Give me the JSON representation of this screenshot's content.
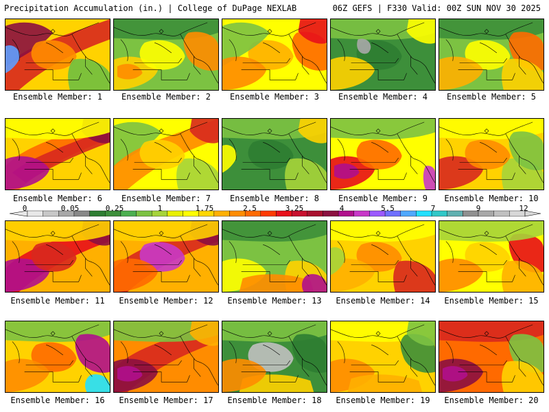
{
  "header": {
    "left": "Precipitation Accumulation (in.) | College of DuPage NEXLAB",
    "right": "06Z GEFS | F330 Valid: 00Z SUN NOV 30 2025"
  },
  "colorbar": {
    "ticks": [
      "0",
      "0.05",
      "0.25",
      "1",
      "1.75",
      "2.5",
      "3.25",
      "4",
      "5.5",
      "7",
      "9",
      "12"
    ],
    "colors": [
      "#e8e8e8",
      "#c8c8c8",
      "#a8a8a8",
      "#888888",
      "#2e7d32",
      "#3d8f3a",
      "#4caf50",
      "#7cc242",
      "#a6d43a",
      "#e8f000",
      "#ffff00",
      "#ffd700",
      "#ffb000",
      "#ff8c00",
      "#ff6a00",
      "#ff3a00",
      "#e8101a",
      "#c8102e",
      "#a8102e",
      "#8b1040",
      "#b0108c",
      "#c838c8",
      "#9b59ff",
      "#6f6fff",
      "#4fa8ff",
      "#22e0ff",
      "#30c8c8",
      "#60b0b0",
      "#909090",
      "#a8a8a8",
      "#c0c0c0",
      "#d8d8d8"
    ]
  },
  "members": [
    {
      "label": "Ensemble Member: 1",
      "base": "#ffd200",
      "blobs": [
        {
          "c": "#d8281e",
          "s": "diag"
        },
        {
          "c": "#8b1040",
          "s": "nw"
        },
        {
          "c": "#5f9fff",
          "s": "nwcorner"
        },
        {
          "c": "#ff8c00",
          "s": "mid"
        },
        {
          "c": "#6fbf40",
          "s": "se"
        }
      ]
    },
    {
      "label": "Ensemble Member: 2",
      "base": "#7cc242",
      "blobs": [
        {
          "c": "#3d8f3a",
          "s": "north"
        },
        {
          "c": "#ffd200",
          "s": "sw"
        },
        {
          "c": "#ff8c00",
          "s": "sw2"
        },
        {
          "c": "#ffff00",
          "s": "mid"
        },
        {
          "c": "#ff8c00",
          "s": "east"
        }
      ]
    },
    {
      "label": "Ensemble Member: 3",
      "base": "#ffff00",
      "blobs": [
        {
          "c": "#ffb000",
          "s": "mid"
        },
        {
          "c": "#ff6a00",
          "s": "east"
        },
        {
          "c": "#e8101a",
          "s": "ne"
        },
        {
          "c": "#7cc242",
          "s": "nw"
        },
        {
          "c": "#ff8c00",
          "s": "sw"
        }
      ]
    },
    {
      "label": "Ensemble Member: 4",
      "base": "#3d8f3a",
      "blobs": [
        {
          "c": "#2e7d32",
          "s": "mid"
        },
        {
          "c": "#7cc242",
          "s": "north"
        },
        {
          "c": "#a8a8a8",
          "s": "nwc"
        },
        {
          "c": "#ffff00",
          "s": "ne"
        },
        {
          "c": "#ffd200",
          "s": "sw"
        }
      ]
    },
    {
      "label": "Ensemble Member: 5",
      "base": "#7cc242",
      "blobs": [
        {
          "c": "#3d8f3a",
          "s": "north"
        },
        {
          "c": "#ffff00",
          "s": "mid"
        },
        {
          "c": "#ffb000",
          "s": "sw"
        },
        {
          "c": "#ff6a00",
          "s": "east"
        },
        {
          "c": "#ffd200",
          "s": "se"
        }
      ]
    },
    {
      "label": "Ensemble Member: 6",
      "base": "#ffd200",
      "blobs": [
        {
          "c": "#ff6a00",
          "s": "diag"
        },
        {
          "c": "#d8281e",
          "s": "diag2"
        },
        {
          "c": "#8b1040",
          "s": "ne"
        },
        {
          "c": "#b0108c",
          "s": "sw"
        },
        {
          "c": "#ffff00",
          "s": "north"
        }
      ]
    },
    {
      "label": "Ensemble Member: 7",
      "base": "#ffff00",
      "blobs": [
        {
          "c": "#7cc242",
          "s": "nw"
        },
        {
          "c": "#ff8c00",
          "s": "diag"
        },
        {
          "c": "#d8281e",
          "s": "ne"
        },
        {
          "c": "#a6d43a",
          "s": "se"
        },
        {
          "c": "#ffd200",
          "s": "mid"
        }
      ]
    },
    {
      "label": "Ensemble Member: 8",
      "base": "#3d8f3a",
      "blobs": [
        {
          "c": "#2e7d32",
          "s": "mid"
        },
        {
          "c": "#7cc242",
          "s": "north"
        },
        {
          "c": "#ffff00",
          "s": "nwcorner"
        },
        {
          "c": "#ffd200",
          "s": "ne"
        },
        {
          "c": "#a6d43a",
          "s": "se"
        }
      ]
    },
    {
      "label": "Ensemble Member: 9",
      "base": "#ffff00",
      "blobs": [
        {
          "c": "#7cc242",
          "s": "north"
        },
        {
          "c": "#e8101a",
          "s": "sw"
        },
        {
          "c": "#b0108c",
          "s": "sw2"
        },
        {
          "c": "#ff6a00",
          "s": "mid"
        },
        {
          "c": "#c838c8",
          "s": "eastedge"
        }
      ]
    },
    {
      "label": "Ensemble Member: 10",
      "base": "#ffd200",
      "blobs": [
        {
          "c": "#ffff00",
          "s": "north"
        },
        {
          "c": "#d8281e",
          "s": "sw"
        },
        {
          "c": "#a6d43a",
          "s": "se"
        },
        {
          "c": "#ff8c00",
          "s": "mid"
        },
        {
          "c": "#7cc242",
          "s": "east"
        }
      ]
    },
    {
      "label": "Ensemble Member: 11",
      "base": "#ffb000",
      "blobs": [
        {
          "c": "#e8101a",
          "s": "diag"
        },
        {
          "c": "#8b1040",
          "s": "ne"
        },
        {
          "c": "#b0108c",
          "s": "sw"
        },
        {
          "c": "#ffd200",
          "s": "north"
        },
        {
          "c": "#d8281e",
          "s": "mid"
        }
      ]
    },
    {
      "label": "Ensemble Member: 12",
      "base": "#ffb000",
      "blobs": [
        {
          "c": "#d8281e",
          "s": "diag"
        },
        {
          "c": "#8b1040",
          "s": "ne"
        },
        {
          "c": "#c838c8",
          "s": "mid"
        },
        {
          "c": "#ffd200",
          "s": "north"
        },
        {
          "c": "#ff6a00",
          "s": "sw"
        }
      ]
    },
    {
      "label": "Ensemble Member: 13",
      "base": "#7cc242",
      "blobs": [
        {
          "c": "#3d8f3a",
          "s": "north"
        },
        {
          "c": "#ffff00",
          "s": "sw"
        },
        {
          "c": "#ffd200",
          "s": "se"
        },
        {
          "c": "#ff8c00",
          "s": "south"
        },
        {
          "c": "#b0108c",
          "s": "secorner"
        }
      ]
    },
    {
      "label": "Ensemble Member: 14",
      "base": "#ffd200",
      "blobs": [
        {
          "c": "#ffff00",
          "s": "north"
        },
        {
          "c": "#ff8c00",
          "s": "mid"
        },
        {
          "c": "#ffb000",
          "s": "sw"
        },
        {
          "c": "#d8281e",
          "s": "se"
        },
        {
          "c": "#a6d43a",
          "s": "nwcorner"
        }
      ]
    },
    {
      "label": "Ensemble Member: 15",
      "base": "#ffff00",
      "blobs": [
        {
          "c": "#ffd200",
          "s": "mid"
        },
        {
          "c": "#e8101a",
          "s": "east"
        },
        {
          "c": "#ff8c00",
          "s": "sw"
        },
        {
          "c": "#a6d43a",
          "s": "north"
        },
        {
          "c": "#ffb000",
          "s": "se"
        }
      ]
    },
    {
      "label": "Ensemble Member: 16",
      "base": "#ffd200",
      "blobs": [
        {
          "c": "#7cc242",
          "s": "north"
        },
        {
          "c": "#ff6a00",
          "s": "mid"
        },
        {
          "c": "#b0108c",
          "s": "east"
        },
        {
          "c": "#22e0ff",
          "s": "secorner"
        },
        {
          "c": "#ff8c00",
          "s": "sw"
        }
      ]
    },
    {
      "label": "Ensemble Member: 17",
      "base": "#ff8c00",
      "blobs": [
        {
          "c": "#d8281e",
          "s": "diag"
        },
        {
          "c": "#8b1040",
          "s": "sw"
        },
        {
          "c": "#b0108c",
          "s": "sw2"
        },
        {
          "c": "#7cc242",
          "s": "north"
        },
        {
          "c": "#ffb000",
          "s": "ne"
        }
      ]
    },
    {
      "label": "Ensemble Member: 18",
      "base": "#3d8f3a",
      "blobs": [
        {
          "c": "#7cc242",
          "s": "north"
        },
        {
          "c": "#c0c0c0",
          "s": "mid"
        },
        {
          "c": "#ffd200",
          "s": "south"
        },
        {
          "c": "#ff8c00",
          "s": "sw"
        },
        {
          "c": "#2e7d32",
          "s": "east"
        }
      ]
    },
    {
      "label": "Ensemble Member: 19",
      "base": "#ffd200",
      "blobs": [
        {
          "c": "#ffff00",
          "s": "north"
        },
        {
          "c": "#3d8f3a",
          "s": "east"
        },
        {
          "c": "#7cc242",
          "s": "ne"
        },
        {
          "c": "#ff8c00",
          "s": "sw"
        },
        {
          "c": "#ffb000",
          "s": "south"
        }
      ]
    },
    {
      "label": "Ensemble Member: 20",
      "base": "#ff6a00",
      "blobs": [
        {
          "c": "#d8281e",
          "s": "north"
        },
        {
          "c": "#8b1040",
          "s": "sw"
        },
        {
          "c": "#b0108c",
          "s": "sw2"
        },
        {
          "c": "#7cc242",
          "s": "east"
        },
        {
          "c": "#ffd200",
          "s": "se"
        }
      ]
    }
  ]
}
